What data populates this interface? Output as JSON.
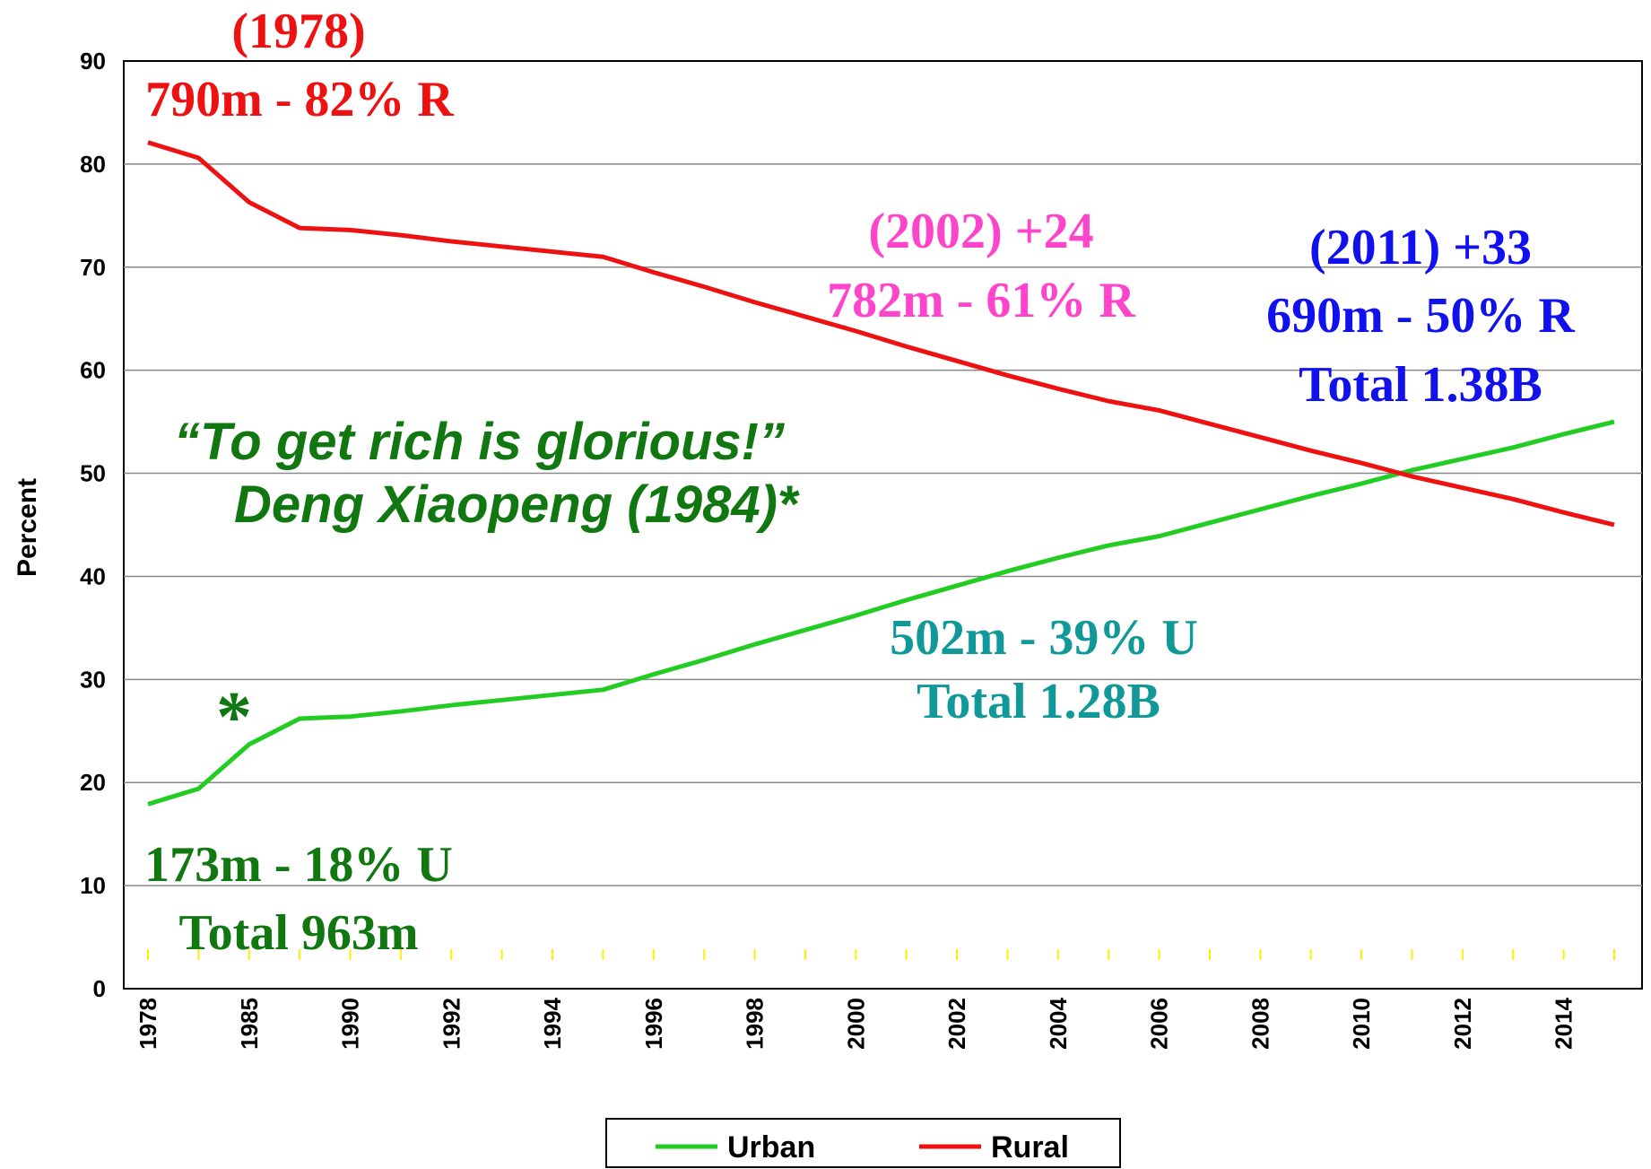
{
  "chart_data": {
    "type": "line",
    "y_label": "Percent",
    "categories": [
      "1978",
      null,
      "1985",
      null,
      "1990",
      null,
      "1992",
      null,
      "1994",
      null,
      "1996",
      null,
      "1998",
      null,
      "2000",
      null,
      "2002",
      null,
      "2004",
      null,
      "2006",
      null,
      "2008",
      null,
      "2010",
      null,
      "2012",
      null,
      "2014",
      null
    ],
    "series": [
      {
        "name": "Urban",
        "color": "#22cc22",
        "values": [
          17.9,
          19.4,
          23.7,
          26.2,
          26.4,
          26.9,
          27.5,
          28.0,
          28.5,
          29.0,
          30.5,
          31.9,
          33.4,
          34.8,
          36.2,
          37.7,
          39.1,
          40.5,
          41.8,
          43.0,
          43.9,
          45.2,
          46.5,
          47.8,
          49.0,
          50.3,
          51.4,
          52.5,
          53.8,
          55.0
        ]
      },
      {
        "name": "Rural",
        "color": "#ee1111",
        "values": [
          82.1,
          80.6,
          76.3,
          73.8,
          73.6,
          73.1,
          72.5,
          72.0,
          71.5,
          71.0,
          69.5,
          68.1,
          66.6,
          65.2,
          63.8,
          62.3,
          60.9,
          59.5,
          58.2,
          57.0,
          56.1,
          54.8,
          53.5,
          52.2,
          51.0,
          49.7,
          48.6,
          47.5,
          46.2,
          45.0
        ]
      }
    ],
    "ylim": [
      0,
      90
    ],
    "yticks": [
      0,
      10,
      20,
      30,
      40,
      50,
      60,
      70,
      80,
      90
    ],
    "grid": true,
    "legend": "bottom",
    "annotations": [
      {
        "text": "(1978)",
        "color": "#ee1111"
      },
      {
        "text": "790m - 82% R",
        "color": "#ee1111"
      },
      {
        "text": "(2002) +24",
        "color": "#ff44cc"
      },
      {
        "text": "782m - 61% R",
        "color": "#ff44cc"
      },
      {
        "text": "(2011) +33",
        "color": "#1111ee"
      },
      {
        "text": "690m - 50% R",
        "color": "#1111ee"
      },
      {
        "text": "Total 1.38B",
        "color": "#1111ee"
      },
      {
        "text": "“To get rich is glorious!”",
        "color": "#117711"
      },
      {
        "text": "Deng Xiaopeng (1984)*",
        "color": "#117711"
      },
      {
        "text": "*",
        "color": "#117711"
      },
      {
        "text": "502m - 39% U",
        "color": "#119999"
      },
      {
        "text": "Total 1.28B",
        "color": "#119999"
      },
      {
        "text": "173m - 18% U",
        "color": "#117711"
      },
      {
        "text": "Total 963m",
        "color": "#117711"
      }
    ]
  }
}
